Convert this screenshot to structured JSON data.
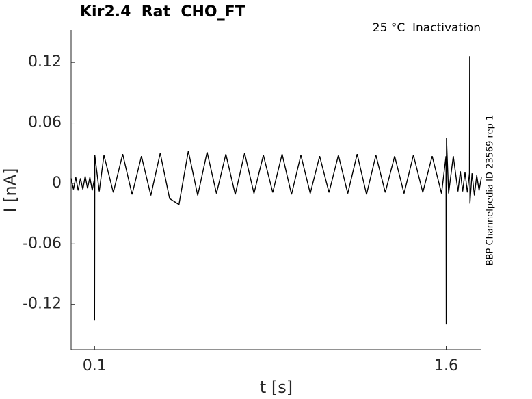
{
  "chart_data": {
    "type": "line",
    "title": "Kir2.4  Rat  CHO_FT",
    "subtitle": "25 °C  Inactivation",
    "xlabel": "t [s]",
    "ylabel": "I [nA]",
    "annotation": "BBP Channelpedia ID 23569 rep 1",
    "color": "#000000",
    "xlim": [
      0,
      1.75
    ],
    "ylim": [
      -0.165,
      0.152
    ],
    "xticks": [
      0.1,
      1.6
    ],
    "yticks": [
      -0.12,
      -0.06,
      0,
      0.06,
      0.12
    ],
    "x": [
      0,
      0.01,
      0.02,
      0.03,
      0.04,
      0.05,
      0.06,
      0.07,
      0.08,
      0.09,
      0.099,
      0.1,
      0.101,
      0.12,
      0.14,
      0.18,
      0.22,
      0.26,
      0.3,
      0.34,
      0.38,
      0.42,
      0.46,
      0.5,
      0.54,
      0.58,
      0.62,
      0.66,
      0.7,
      0.74,
      0.78,
      0.82,
      0.86,
      0.9,
      0.94,
      0.98,
      1.02,
      1.06,
      1.1,
      1.14,
      1.18,
      1.22,
      1.26,
      1.3,
      1.34,
      1.38,
      1.42,
      1.46,
      1.5,
      1.54,
      1.58,
      1.599,
      1.6,
      1.601,
      1.61,
      1.63,
      1.65,
      1.66,
      1.67,
      1.68,
      1.69,
      1.699,
      1.7,
      1.701,
      1.71,
      1.72,
      1.73,
      1.74,
      1.75
    ],
    "values": [
      0.005,
      -0.006,
      0.006,
      -0.007,
      0.005,
      -0.006,
      0.007,
      -0.005,
      0.006,
      -0.007,
      0.004,
      -0.136,
      0.028,
      -0.008,
      0.028,
      -0.009,
      0.029,
      -0.011,
      0.027,
      -0.012,
      0.03,
      -0.015,
      -0.021,
      0.032,
      -0.012,
      0.031,
      -0.01,
      0.029,
      -0.011,
      0.03,
      -0.01,
      0.028,
      -0.009,
      0.029,
      -0.011,
      0.028,
      -0.01,
      0.027,
      -0.009,
      0.028,
      -0.01,
      0.029,
      -0.011,
      0.028,
      -0.009,
      0.027,
      -0.01,
      0.028,
      -0.009,
      0.027,
      -0.01,
      0.027,
      -0.14,
      0.045,
      -0.01,
      0.027,
      -0.008,
      0.012,
      -0.008,
      0.011,
      -0.009,
      0.01,
      0.126,
      -0.02,
      0.01,
      -0.012,
      0.008,
      -0.007,
      0.006
    ]
  }
}
